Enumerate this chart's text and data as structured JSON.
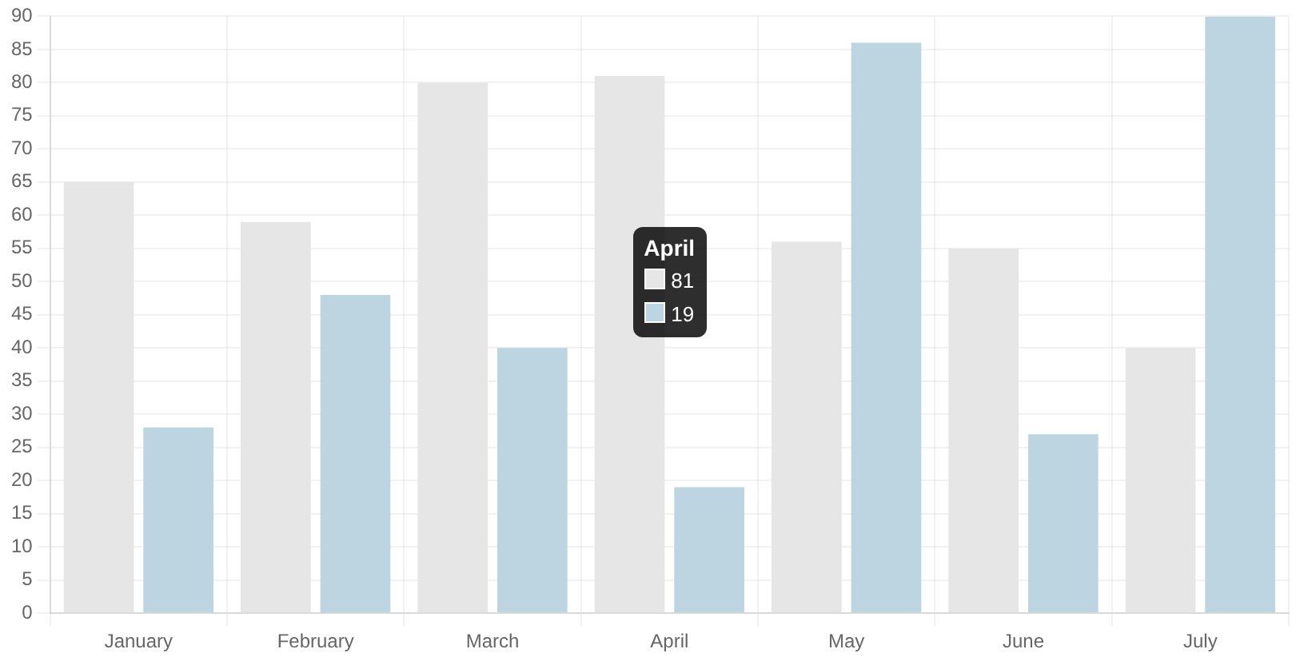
{
  "chart_data": {
    "type": "bar",
    "categories": [
      "January",
      "February",
      "March",
      "April",
      "May",
      "June",
      "July"
    ],
    "series": [
      {
        "color": "#e6e6e6",
        "values": [
          65,
          59,
          80,
          81,
          56,
          55,
          40
        ]
      },
      {
        "color": "#bdd5e0",
        "values": [
          28,
          48,
          40,
          19,
          86,
          27,
          90
        ]
      }
    ],
    "ylim": [
      0,
      90
    ],
    "yticks": [
      0,
      5,
      10,
      15,
      20,
      25,
      30,
      35,
      40,
      45,
      50,
      55,
      60,
      65,
      70,
      75,
      80,
      85,
      90
    ],
    "grid": true,
    "annotations": [
      {
        "text": "April",
        "x": "April",
        "y": 55
      },
      {
        "text": "81",
        "x": "April",
        "y": 50
      },
      {
        "text": "19",
        "x": "April",
        "y": 45
      }
    ]
  }
}
